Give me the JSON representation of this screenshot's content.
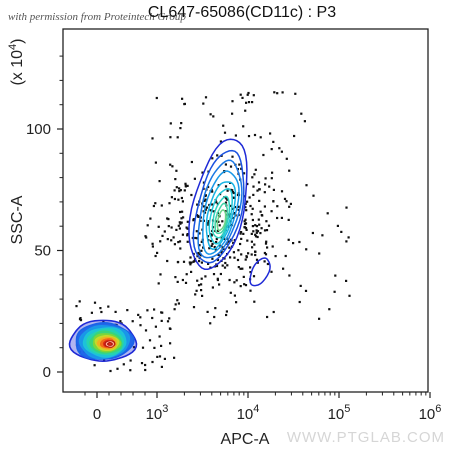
{
  "chart_data": {
    "type": "scatter",
    "title": "CL647-65086(CD11c) : P3",
    "xlabel": "APC-A",
    "ylabel": "SSC-A",
    "y_multiplier_label": "(x 10",
    "y_multiplier_exp": "4",
    "y_multiplier_close": ")",
    "x_ticks": [
      {
        "value": 0,
        "base": "0",
        "exp": ""
      },
      {
        "value": 1000,
        "base": "10",
        "exp": "3"
      },
      {
        "value": 10000,
        "base": "10",
        "exp": "4"
      },
      {
        "value": 100000,
        "base": "10",
        "exp": "5"
      },
      {
        "value": 1000000,
        "base": "10",
        "exp": "6"
      }
    ],
    "y_ticks": [
      {
        "value": 0,
        "label": "0"
      },
      {
        "value": 50,
        "label": "50"
      },
      {
        "value": 100,
        "label": "100"
      }
    ],
    "x_scale": "biexponential",
    "ylim": [
      -5,
      140
    ],
    "populations": [
      {
        "name": "",
        "x_center": 0,
        "y_center": 12,
        "density": "high"
      },
      {
        "name": "",
        "x_center": 6000,
        "y_center": 65,
        "density": "medium"
      },
      {
        "name": "",
        "x_center": 13000,
        "y_center": 42,
        "density": "low"
      }
    ],
    "annotation": "with permission from Proteintech Group",
    "watermark": "WWW.PTGLAB.COM"
  }
}
